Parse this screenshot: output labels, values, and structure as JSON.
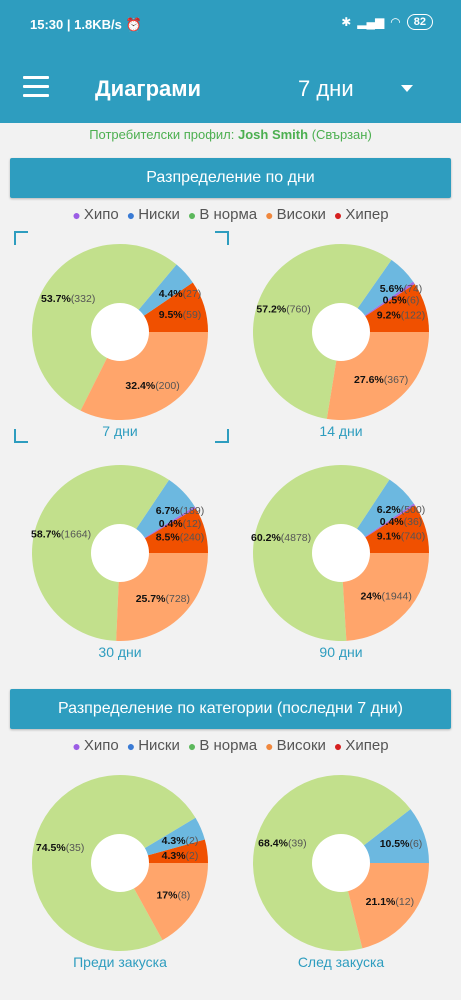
{
  "status_bar": {
    "time": "15:30",
    "speed": "| 1.8KB/s",
    "battery": "82"
  },
  "header": {
    "title": "Диаграми",
    "period": "7 дни"
  },
  "profile": {
    "prefix": "Потребителски профил:",
    "name": "Josh Smith",
    "suffix": "(Свързан)"
  },
  "colors": {
    "hypo": "#a36de0",
    "low": "#6cb8e0",
    "normal": "#c2e08c",
    "high": "#ffa56b",
    "hyper": "#f05000",
    "accent": "#2e9dbf"
  },
  "legend": [
    {
      "label": "Хипо",
      "dot_color": "#9b5de5"
    },
    {
      "label": "Ниски",
      "dot_color": "#3a7bd5"
    },
    {
      "label": "В норма",
      "dot_color": "#5cb85c"
    },
    {
      "label": "Високи",
      "dot_color": "#f0883e"
    },
    {
      "label": "Хипер",
      "dot_color": "#d62020"
    }
  ],
  "sections": {
    "by_days": "Разпределение по дни",
    "by_category": "Разпределение по категории (последни 7 дни)"
  },
  "chart_data": [
    {
      "type": "pie",
      "title": "7 дни",
      "slices": [
        {
          "category": "hyper",
          "pct": "9.5%",
          "count": "(59)",
          "value": 9.5
        },
        {
          "category": "low",
          "pct": "4.4%",
          "count": "(27)",
          "value": 4.4
        },
        {
          "category": "normal",
          "pct": "53.7%",
          "count": "(332)",
          "value": 53.7
        },
        {
          "category": "high",
          "pct": "32.4%",
          "count": "(200)",
          "value": 32.4
        }
      ]
    },
    {
      "type": "pie",
      "title": "14 дни",
      "slices": [
        {
          "category": "hyper",
          "pct": "9.2%",
          "count": "(122)",
          "value": 9.2
        },
        {
          "category": "hypo",
          "pct": "0.5%",
          "count": "(6)",
          "value": 0.5
        },
        {
          "category": "low",
          "pct": "5.6%",
          "count": "(74)",
          "value": 5.6
        },
        {
          "category": "normal",
          "pct": "57.2%",
          "count": "(760)",
          "value": 57.2
        },
        {
          "category": "high",
          "pct": "27.6%",
          "count": "(367)",
          "value": 27.6
        }
      ]
    },
    {
      "type": "pie",
      "title": "30 дни",
      "slices": [
        {
          "category": "hyper",
          "pct": "8.5%",
          "count": "(240)",
          "value": 8.5
        },
        {
          "category": "hypo",
          "pct": "0.4%",
          "count": "(12)",
          "value": 0.4
        },
        {
          "category": "low",
          "pct": "6.7%",
          "count": "(189)",
          "value": 6.7
        },
        {
          "category": "normal",
          "pct": "58.7%",
          "count": "(1664)",
          "value": 58.7
        },
        {
          "category": "high",
          "pct": "25.7%",
          "count": "(728)",
          "value": 25.7
        }
      ]
    },
    {
      "type": "pie",
      "title": "90 дни",
      "slices": [
        {
          "category": "hyper",
          "pct": "9.1%",
          "count": "(740)",
          "value": 9.1
        },
        {
          "category": "hypo",
          "pct": "0.4%",
          "count": "(36)",
          "value": 0.4
        },
        {
          "category": "low",
          "pct": "6.2%",
          "count": "(500)",
          "value": 6.2
        },
        {
          "category": "normal",
          "pct": "60.2%",
          "count": "(4878)",
          "value": 60.2
        },
        {
          "category": "high",
          "pct": "24%",
          "count": "(1944)",
          "value": 24.0
        }
      ]
    },
    {
      "type": "pie",
      "title": "Преди закуска",
      "slices": [
        {
          "category": "hyper",
          "pct": "4.3%",
          "count": "(2)",
          "value": 4.3
        },
        {
          "category": "low",
          "pct": "4.3%",
          "count": "(2)",
          "value": 4.3
        },
        {
          "category": "normal",
          "pct": "74.5%",
          "count": "(35)",
          "value": 74.5
        },
        {
          "category": "high",
          "pct": "17%",
          "count": "(8)",
          "value": 17.0
        }
      ]
    },
    {
      "type": "pie",
      "title": "След закуска",
      "slices": [
        {
          "category": "low",
          "pct": "10.5%",
          "count": "(6)",
          "value": 10.5
        },
        {
          "category": "normal",
          "pct": "68.4%",
          "count": "(39)",
          "value": 68.4
        },
        {
          "category": "high",
          "pct": "21.1%",
          "count": "(12)",
          "value": 21.1
        }
      ]
    }
  ]
}
